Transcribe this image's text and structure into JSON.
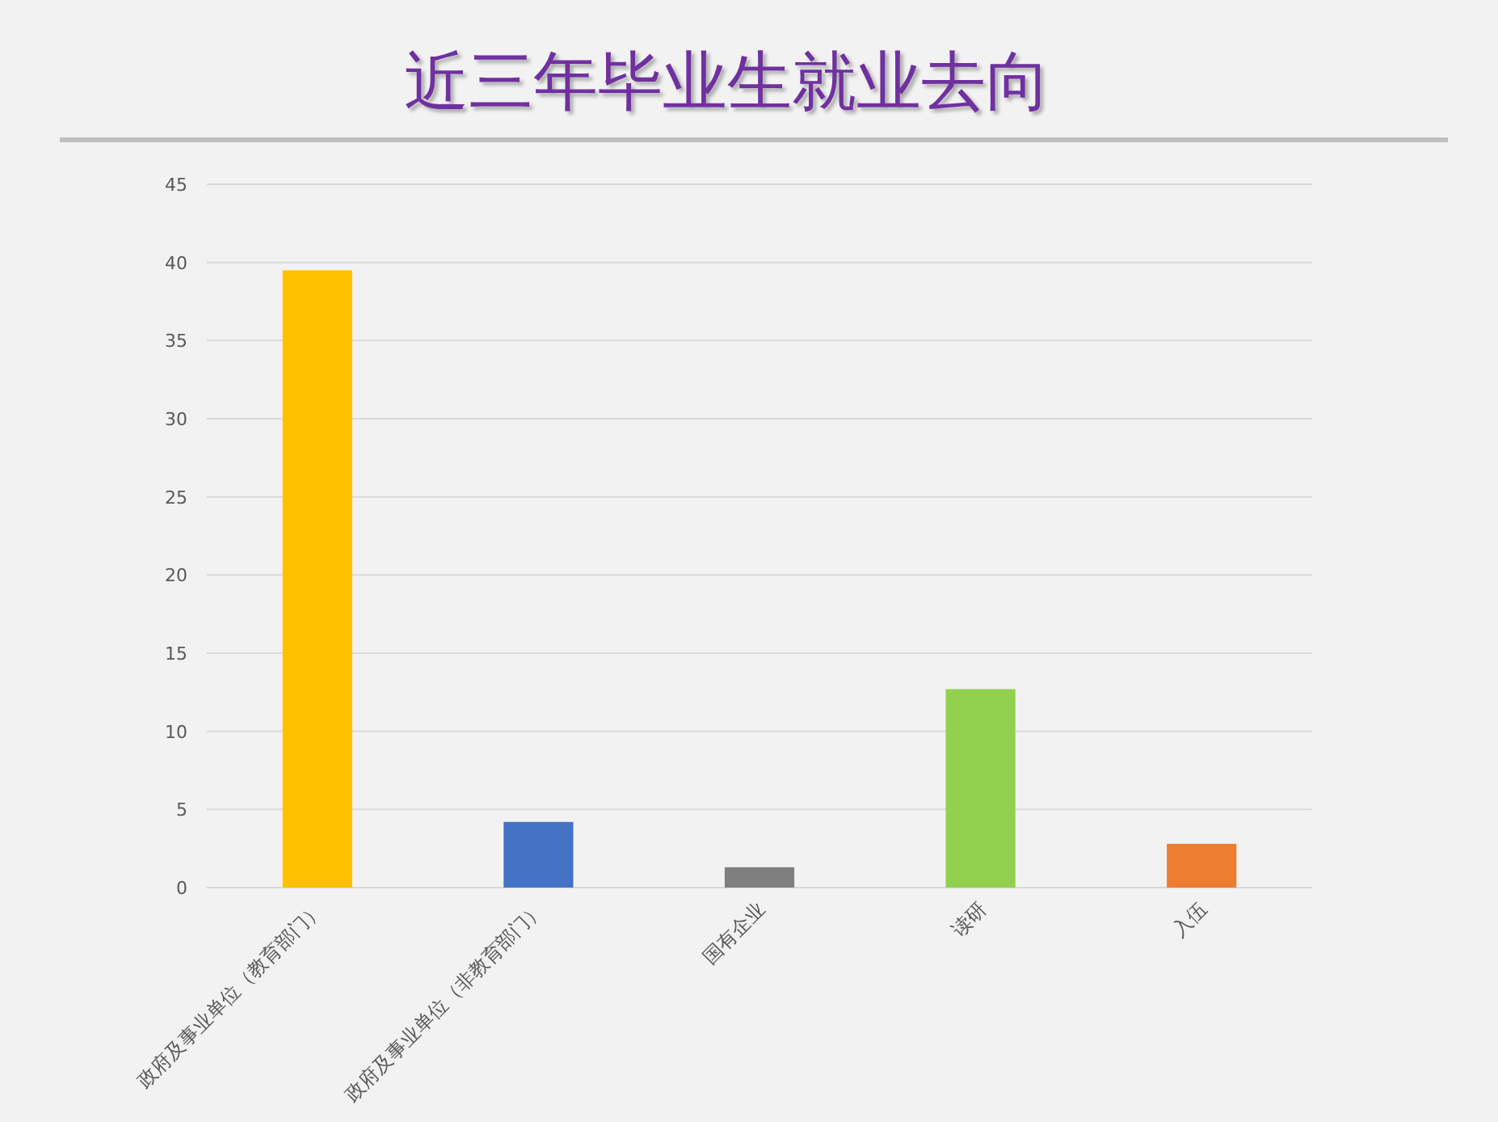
{
  "chart_data": {
    "type": "bar",
    "title": "近三年毕业生就业去向",
    "categories": [
      "政府及事业单位（教育部门）",
      "政府及事业单位（非教育部门）",
      "国有企业",
      "读研",
      "入伍"
    ],
    "values": [
      39.5,
      4.2,
      1.3,
      12.7,
      2.8
    ],
    "colors": [
      "#ffc000",
      "#4472c4",
      "#7f7f7f",
      "#92d050",
      "#ed7d31"
    ],
    "ylim": [
      0,
      45
    ],
    "yticks": [
      0,
      5,
      10,
      15,
      20,
      25,
      30,
      35,
      40,
      45
    ],
    "grid": "y"
  }
}
